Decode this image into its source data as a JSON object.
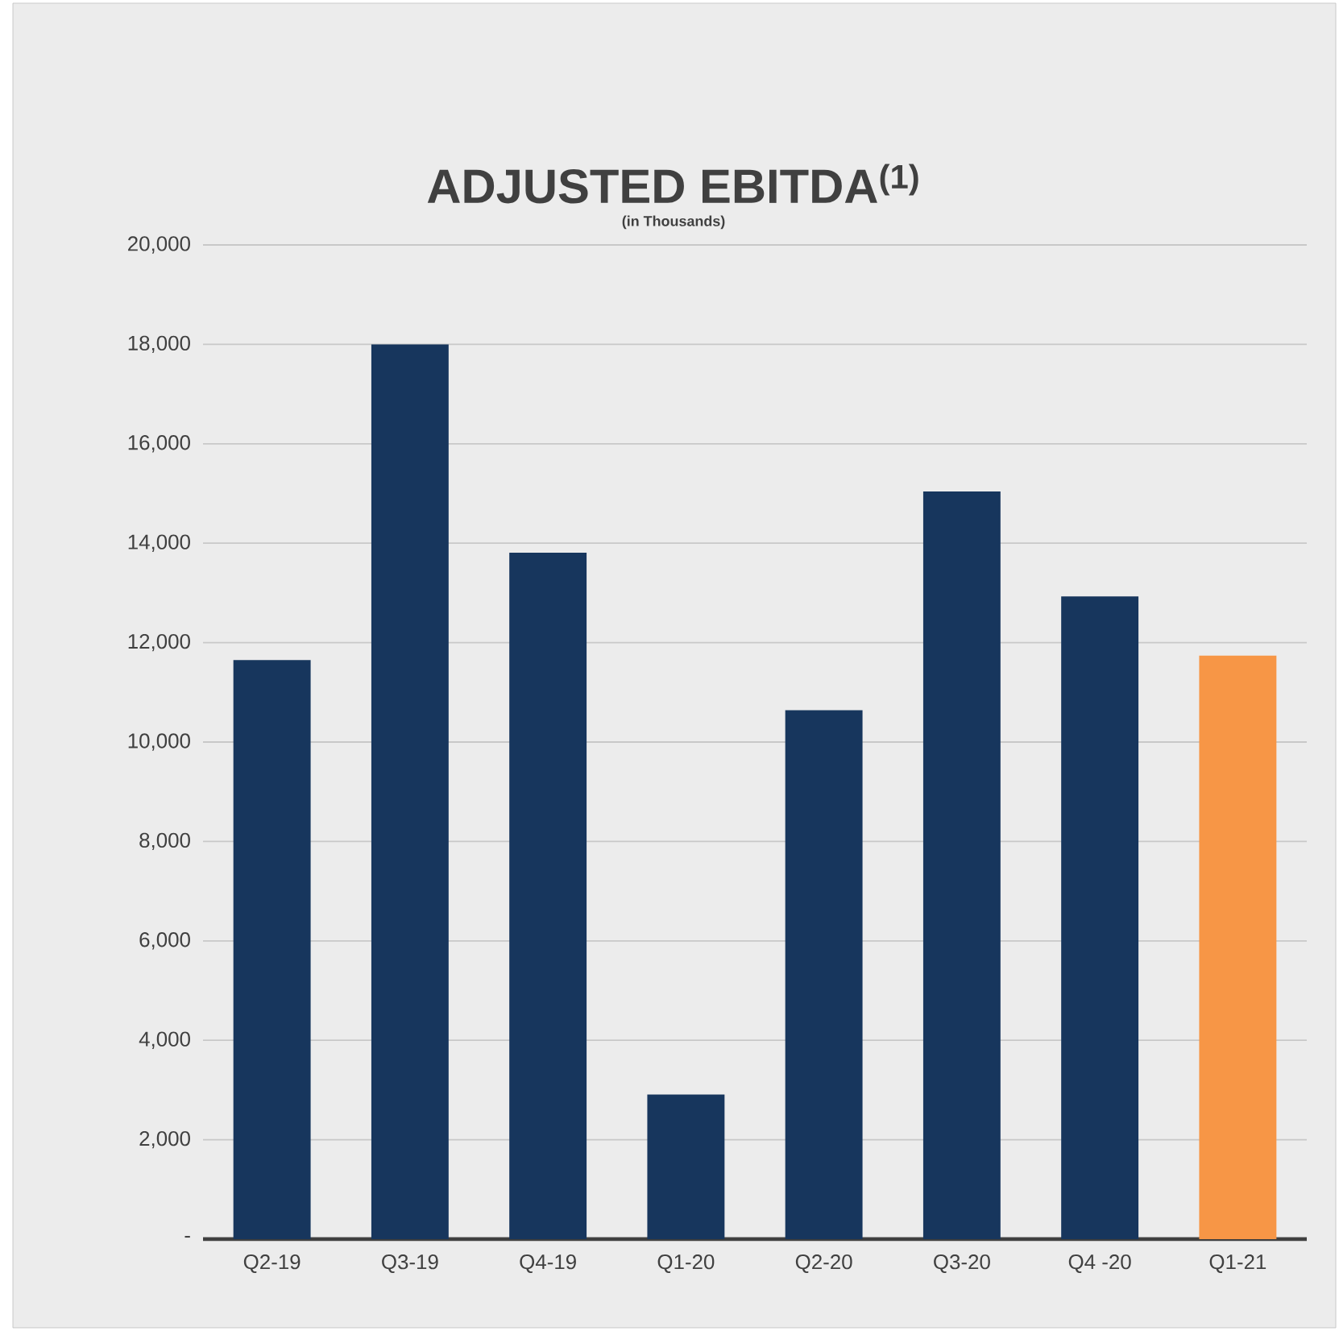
{
  "chart_data": {
    "type": "bar",
    "title": "ADJUSTED EBITDA$^{(1)}$",
    "subtitle": "(in Thousands)",
    "categories": [
      "Q2-19",
      "Q3-19",
      "Q4-19",
      "Q1-20",
      "Q2-20",
      "Q3-20",
      "Q4 -20",
      "Q1-21"
    ],
    "values": [
      11650,
      18000,
      13810,
      2910,
      10640,
      15040,
      12930,
      11740
    ],
    "colors": [
      "#17365d",
      "#17365d",
      "#17365d",
      "#17365d",
      "#17365d",
      "#17365d",
      "#17365d",
      "#f79646"
    ],
    "ylim": [
      0,
      20000
    ],
    "yticks": [
      {
        "value": 0,
        "label": "-"
      },
      {
        "value": 2000,
        "label": "2,000"
      },
      {
        "value": 4000,
        "label": "4,000"
      },
      {
        "value": 6000,
        "label": "6,000"
      },
      {
        "value": 8000,
        "label": "8,000"
      },
      {
        "value": 10000,
        "label": "10,000"
      },
      {
        "value": 12000,
        "label": "12,000"
      },
      {
        "value": 14000,
        "label": "14,000"
      },
      {
        "value": 16000,
        "label": "16,000"
      },
      {
        "value": 18000,
        "label": "18,000"
      },
      {
        "value": 20000,
        "label": "20,000"
      }
    ],
    "grid": "y"
  }
}
